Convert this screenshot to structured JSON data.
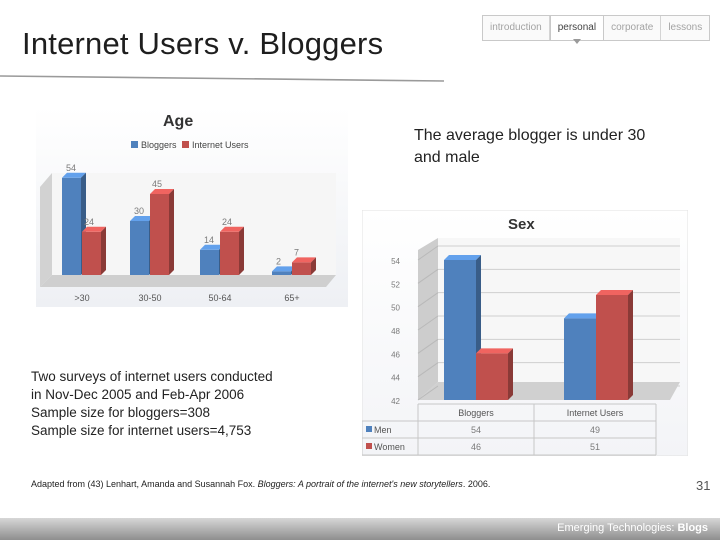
{
  "slide": {
    "title": "Internet Users v. Bloggers",
    "summary": "The average blogger is under 30 and male",
    "notes": [
      "Two surveys of internet users conducted",
      "in Nov-Dec 2005 and Feb-Apr 2006",
      "Sample size for bloggers=308",
      "Sample size for internet users=4,753"
    ],
    "citation": {
      "prefix": "Adapted from (43) Lenhart, Amanda and Susannah Fox. ",
      "title": "Bloggers: A portrait of the internet's new storytellers",
      "suffix": ". 2006."
    },
    "page_number": "31",
    "footer": {
      "course": "Emerging Technologies: ",
      "section": "Blogs"
    }
  },
  "nav": {
    "tabs": [
      {
        "label": "introduction",
        "active": false
      },
      {
        "label": "personal",
        "active": true
      },
      {
        "label": "corporate",
        "active": false
      },
      {
        "label": "lessons",
        "active": false
      }
    ]
  },
  "colors": {
    "bloggers": "#4f81bd",
    "internet_users": "#c0504d",
    "tick_text": "#7a7a7a"
  },
  "chart_data": [
    {
      "type": "bar",
      "title": "Age",
      "categories": [
        ">30",
        "30-50",
        "50-64",
        "65+"
      ],
      "series": [
        {
          "name": "Bloggers",
          "values": [
            54,
            30,
            14,
            2
          ]
        },
        {
          "name": "Internet Users",
          "values": [
            24,
            45,
            24,
            7
          ]
        }
      ],
      "ylim": [
        0,
        60
      ],
      "grid": false,
      "legend": "top",
      "data_labels": true
    },
    {
      "type": "bar",
      "title": "Sex",
      "categories": [
        "Bloggers",
        "Internet Users"
      ],
      "series": [
        {
          "name": "Men",
          "values": [
            54,
            49
          ]
        },
        {
          "name": "Women",
          "values": [
            46,
            51
          ]
        }
      ],
      "yticks": [
        42,
        44,
        46,
        48,
        50,
        52,
        54
      ],
      "ylim": [
        42,
        54
      ],
      "grid": true,
      "legend": "data-table",
      "data_table": true
    }
  ]
}
